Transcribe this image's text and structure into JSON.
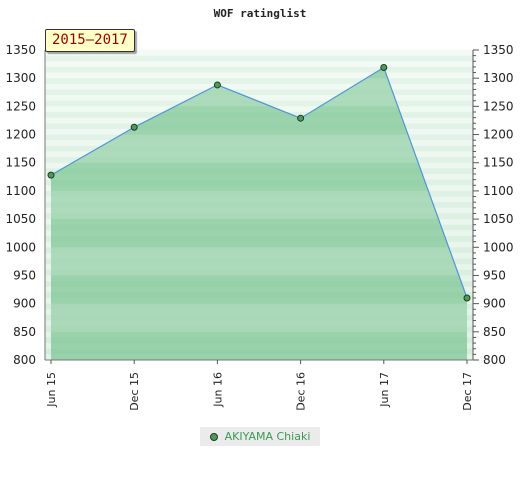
{
  "chart_data": {
    "type": "area",
    "title": "WOF ratinglist",
    "period": "2015–2017",
    "categories": [
      "Jun 15",
      "Dec 15",
      "Jun 16",
      "Dec 16",
      "Jun 17",
      "Dec 17"
    ],
    "yticks": [
      800,
      850,
      900,
      950,
      1000,
      1050,
      1100,
      1150,
      1200,
      1250,
      1300,
      1350
    ],
    "ylim": [
      800,
      1350
    ],
    "series": [
      {
        "name": "AKIYAMA Chiaki",
        "values": [
          1128,
          1213,
          1288,
          1229,
          1319,
          910
        ]
      }
    ],
    "colors": {
      "line": "#4f95d8",
      "fill": "#7cc593",
      "marker": "#4e9a5c",
      "band_dark": "#7cc593",
      "band_light": "#a3d8b1"
    },
    "grid": true,
    "legend_position": "bottom"
  }
}
